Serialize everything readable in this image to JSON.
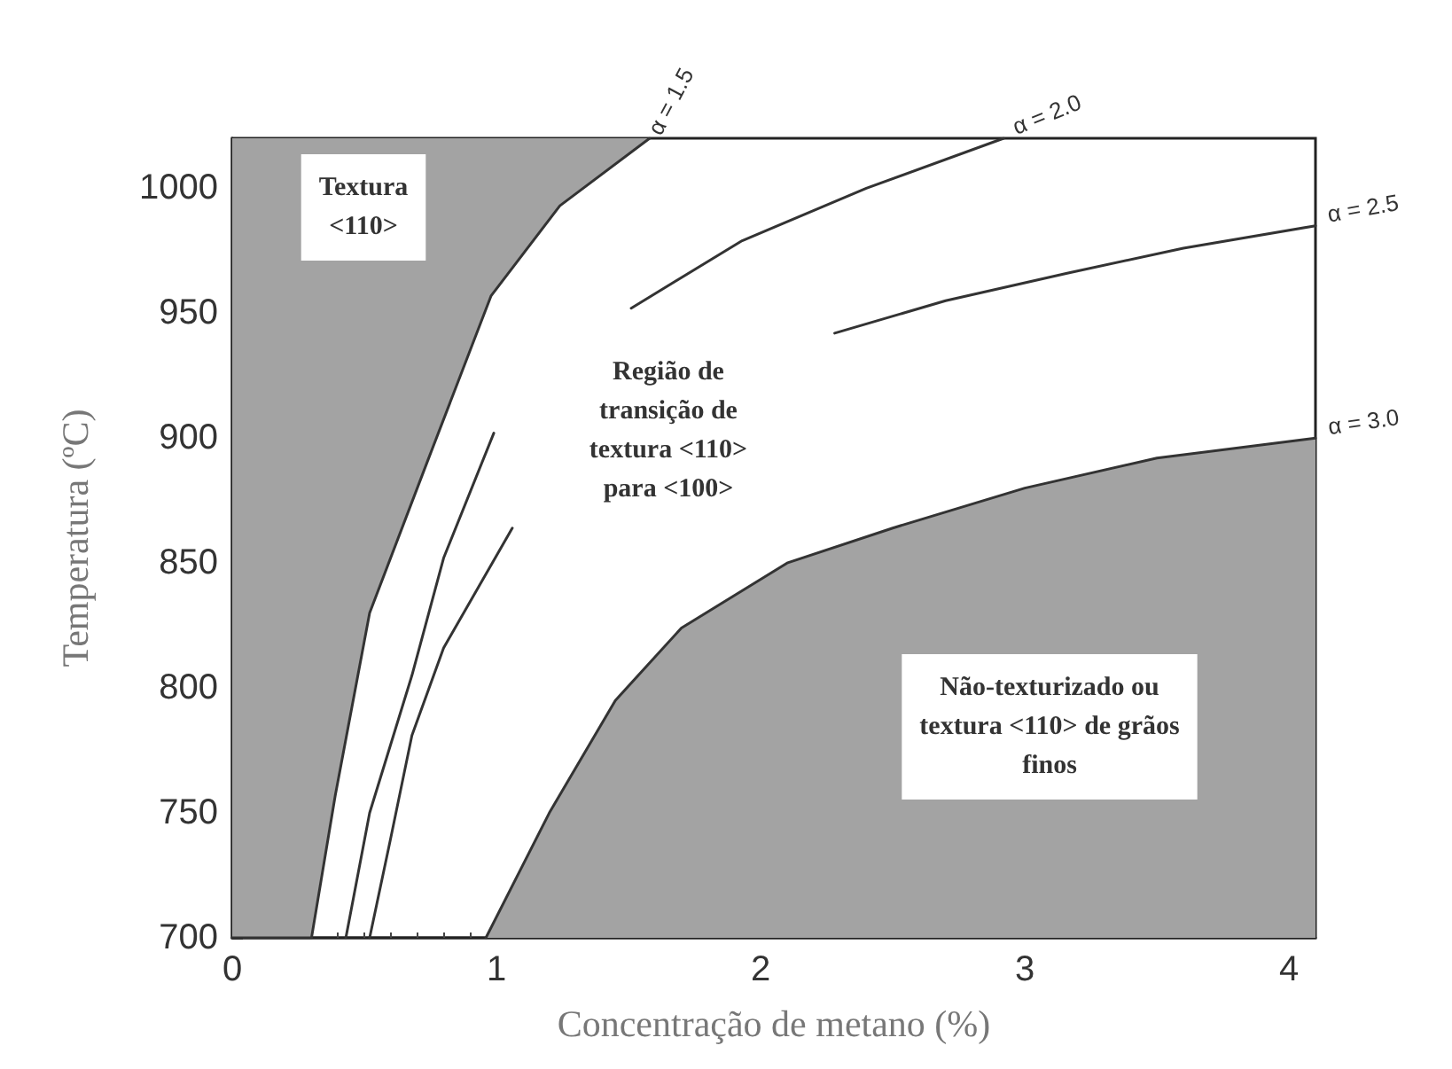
{
  "chart_data": {
    "type": "line",
    "xlabel": "Concentração de metano (%)",
    "ylabel": "Temperatura (ºC)",
    "xlim": [
      0,
      4.1
    ],
    "xticks": [
      0,
      1,
      2,
      3,
      4
    ],
    "ylim": [
      700,
      1020
    ],
    "yticks": [
      700,
      750,
      800,
      850,
      900,
      950,
      1000
    ],
    "grid": false,
    "legend": false,
    "marker": "none",
    "line_style": "solid",
    "series": [
      {
        "name": "α = 1.5",
        "color": "#333333",
        "x": [
          0,
          0.3,
          0.39,
          0.52,
          0.74,
          0.98,
          1.24,
          1.58
        ],
        "values": [
          700,
          700,
          757,
          830,
          891,
          957,
          993,
          1020
        ],
        "lower": [
          700,
          700,
          757,
          830,
          891,
          957,
          993,
          1020
        ],
        "upper": [
          1020,
          1020,
          1020,
          1020,
          1020,
          1020,
          1020,
          1020
        ]
      },
      {
        "name": "α = 2.0",
        "color": "#333333",
        "x": [
          0.43,
          0.52,
          0.68,
          0.8,
          0.99,
          1.2,
          1.51,
          1.93,
          2.4,
          2.92
        ],
        "values": [
          700,
          750,
          805,
          852,
          902,
          null,
          952,
          979,
          1000,
          1020
        ]
      },
      {
        "name": "α = 2.5",
        "color": "#333333",
        "x": [
          0.52,
          0.6,
          0.68,
          0.8,
          1.06,
          1.6,
          2.28,
          2.7,
          3.16,
          3.6,
          4.1
        ],
        "values": [
          700,
          740,
          781,
          816,
          864,
          null,
          942,
          955,
          966,
          976,
          985
        ]
      },
      {
        "name": "α = 3.0",
        "color": "#333333",
        "x": [
          0.96,
          1.2,
          1.45,
          1.7,
          2.1,
          2.5,
          3.0,
          3.5,
          4.1
        ],
        "values": [
          700,
          750,
          795,
          824,
          850,
          864,
          880,
          892,
          900
        ],
        "lower": [
          700,
          700,
          700,
          700,
          700,
          700,
          700,
          700,
          700
        ],
        "upper": [
          700,
          750,
          795,
          824,
          850,
          864,
          880,
          892,
          900
        ]
      }
    ],
    "annotations": [
      "Textura\n<110>",
      "Região de\ntransição de\ntextura <110>\npara <100>",
      "Não-texturizado ou\ntextura <110> de grãos\nfinos"
    ]
  }
}
